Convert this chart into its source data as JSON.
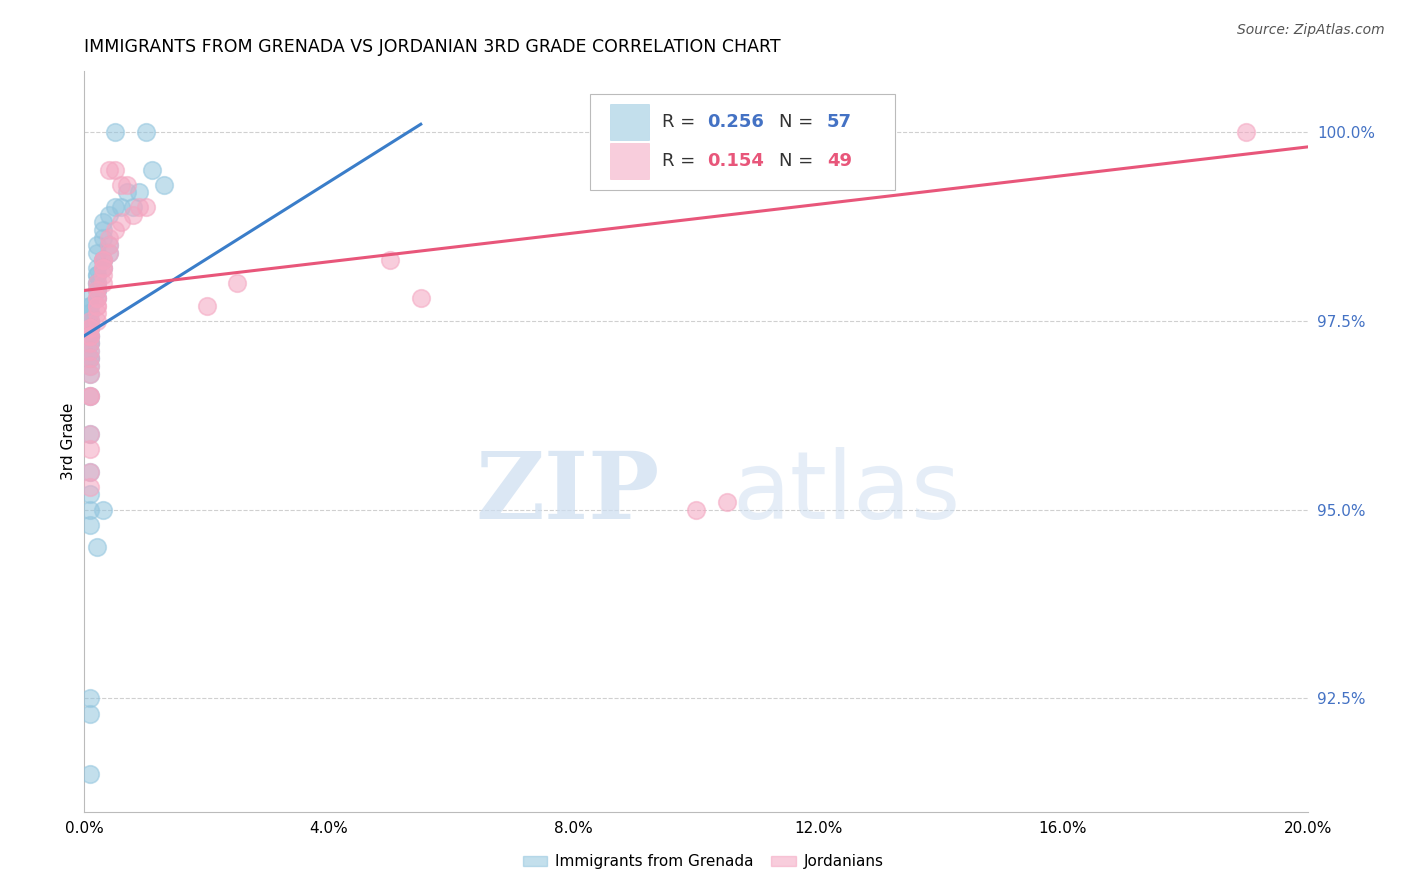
{
  "title": "IMMIGRANTS FROM GRENADA VS JORDANIAN 3RD GRADE CORRELATION CHART",
  "source": "Source: ZipAtlas.com",
  "ylabel": "3rd Grade",
  "right_yticks": [
    92.5,
    95.0,
    97.5,
    100.0
  ],
  "right_ytick_labels": [
    "92.5%",
    "95.0%",
    "97.5%",
    "100.0%"
  ],
  "xtick_positions": [
    0.0,
    0.04,
    0.08,
    0.12,
    0.16,
    0.2
  ],
  "xtick_labels": [
    "0.0%",
    "4.0%",
    "8.0%",
    "12.0%",
    "16.0%",
    "20.0%"
  ],
  "blue_color": "#92c5de",
  "pink_color": "#f4a5c0",
  "blue_line_color": "#3a7dc9",
  "pink_line_color": "#e8567a",
  "blue_scatter_x": [
    0.005,
    0.01,
    0.011,
    0.013,
    0.007,
    0.009,
    0.005,
    0.008,
    0.006,
    0.004,
    0.003,
    0.003,
    0.003,
    0.002,
    0.004,
    0.004,
    0.002,
    0.003,
    0.003,
    0.003,
    0.002,
    0.002,
    0.002,
    0.002,
    0.002,
    0.002,
    0.002,
    0.002,
    0.001,
    0.001,
    0.001,
    0.001,
    0.001,
    0.001,
    0.001,
    0.001,
    0.001,
    0.001,
    0.001,
    0.001,
    0.001,
    0.001,
    0.001,
    0.001,
    0.001,
    0.001,
    0.001,
    0.001,
    0.001,
    0.001,
    0.001,
    0.001,
    0.003,
    0.002,
    0.001,
    0.001,
    0.001
  ],
  "blue_scatter_y": [
    100.0,
    100.0,
    99.5,
    99.3,
    99.2,
    99.2,
    99.0,
    99.0,
    99.0,
    98.9,
    98.8,
    98.7,
    98.6,
    98.5,
    98.5,
    98.4,
    98.4,
    98.3,
    98.3,
    98.2,
    98.2,
    98.1,
    98.1,
    98.0,
    98.0,
    97.9,
    97.9,
    97.8,
    97.8,
    97.7,
    97.7,
    97.6,
    97.6,
    97.5,
    97.5,
    97.4,
    97.4,
    97.3,
    97.3,
    97.2,
    97.2,
    97.1,
    97.0,
    97.0,
    96.9,
    96.8,
    96.5,
    96.0,
    95.5,
    95.2,
    95.0,
    94.8,
    95.0,
    94.5,
    92.5,
    92.3,
    91.5
  ],
  "pink_scatter_x": [
    0.19,
    0.005,
    0.004,
    0.006,
    0.007,
    0.009,
    0.01,
    0.008,
    0.006,
    0.005,
    0.004,
    0.004,
    0.004,
    0.003,
    0.003,
    0.003,
    0.003,
    0.003,
    0.003,
    0.002,
    0.002,
    0.002,
    0.002,
    0.002,
    0.002,
    0.002,
    0.002,
    0.001,
    0.001,
    0.001,
    0.001,
    0.001,
    0.001,
    0.001,
    0.001,
    0.001,
    0.001,
    0.001,
    0.001,
    0.001,
    0.001,
    0.001,
    0.001,
    0.1,
    0.105,
    0.05,
    0.055,
    0.025,
    0.02
  ],
  "pink_scatter_y": [
    100.0,
    99.5,
    99.5,
    99.3,
    99.3,
    99.0,
    99.0,
    98.9,
    98.8,
    98.7,
    98.6,
    98.5,
    98.4,
    98.3,
    98.3,
    98.2,
    98.2,
    98.1,
    98.0,
    98.0,
    97.9,
    97.8,
    97.8,
    97.7,
    97.7,
    97.6,
    97.5,
    97.5,
    97.4,
    97.4,
    97.3,
    97.3,
    97.2,
    97.1,
    97.0,
    96.9,
    96.8,
    96.5,
    96.5,
    96.0,
    95.8,
    95.5,
    95.3,
    95.0,
    95.1,
    98.3,
    97.8,
    98.0,
    97.7
  ],
  "blue_line_x": [
    0.0,
    0.055
  ],
  "blue_line_y": [
    97.3,
    100.1
  ],
  "pink_line_x": [
    0.0,
    0.2
  ],
  "pink_line_y": [
    97.9,
    99.8
  ],
  "xmin": 0.0,
  "xmax": 0.2,
  "ymin": 91.0,
  "ymax": 100.8,
  "watermark_zip": "ZIP",
  "watermark_atlas": "atlas",
  "background_color": "#ffffff",
  "grid_color": "#d0d0d0",
  "legend_blue_label": "R = 0.256   N = 57",
  "legend_pink_label": "R = 0.154   N = 49",
  "bottom_legend_blue": "Immigrants from Grenada",
  "bottom_legend_pink": "Jordanians"
}
